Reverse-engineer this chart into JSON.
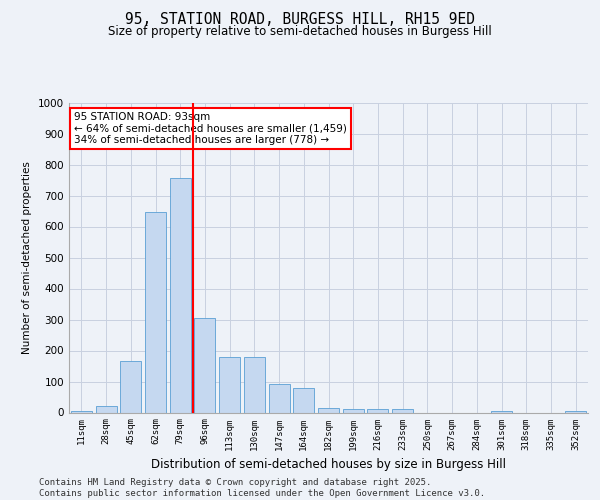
{
  "title": "95, STATION ROAD, BURGESS HILL, RH15 9ED",
  "subtitle": "Size of property relative to semi-detached houses in Burgess Hill",
  "xlabel": "Distribution of semi-detached houses by size in Burgess Hill",
  "ylabel": "Number of semi-detached properties",
  "categories": [
    "11sqm",
    "28sqm",
    "45sqm",
    "62sqm",
    "79sqm",
    "96sqm",
    "113sqm",
    "130sqm",
    "147sqm",
    "164sqm",
    "182sqm",
    "199sqm",
    "216sqm",
    "233sqm",
    "250sqm",
    "267sqm",
    "284sqm",
    "301sqm",
    "318sqm",
    "335sqm",
    "352sqm"
  ],
  "values": [
    5,
    20,
    165,
    648,
    758,
    305,
    180,
    180,
    92,
    80,
    15,
    12,
    10,
    12,
    0,
    0,
    0,
    5,
    0,
    0,
    5
  ],
  "bar_color": "#c5d8f0",
  "bar_edge_color": "#5a9fd4",
  "grid_color": "#c8d0e0",
  "vline_x_index": 5,
  "vline_color": "red",
  "annotation_title": "95 STATION ROAD: 93sqm",
  "annotation_line1": "← 64% of semi-detached houses are smaller (1,459)",
  "annotation_line2": "34% of semi-detached houses are larger (778) →",
  "annotation_box_color": "white",
  "annotation_box_edge": "red",
  "ylim": [
    0,
    1000
  ],
  "yticks": [
    0,
    100,
    200,
    300,
    400,
    500,
    600,
    700,
    800,
    900,
    1000
  ],
  "footer_line1": "Contains HM Land Registry data © Crown copyright and database right 2025.",
  "footer_line2": "Contains public sector information licensed under the Open Government Licence v3.0.",
  "bg_color": "#eef2f8",
  "title_fontsize": 10.5,
  "subtitle_fontsize": 8.5,
  "xlabel_fontsize": 8.5,
  "ylabel_fontsize": 7.5,
  "footer_fontsize": 6.5
}
